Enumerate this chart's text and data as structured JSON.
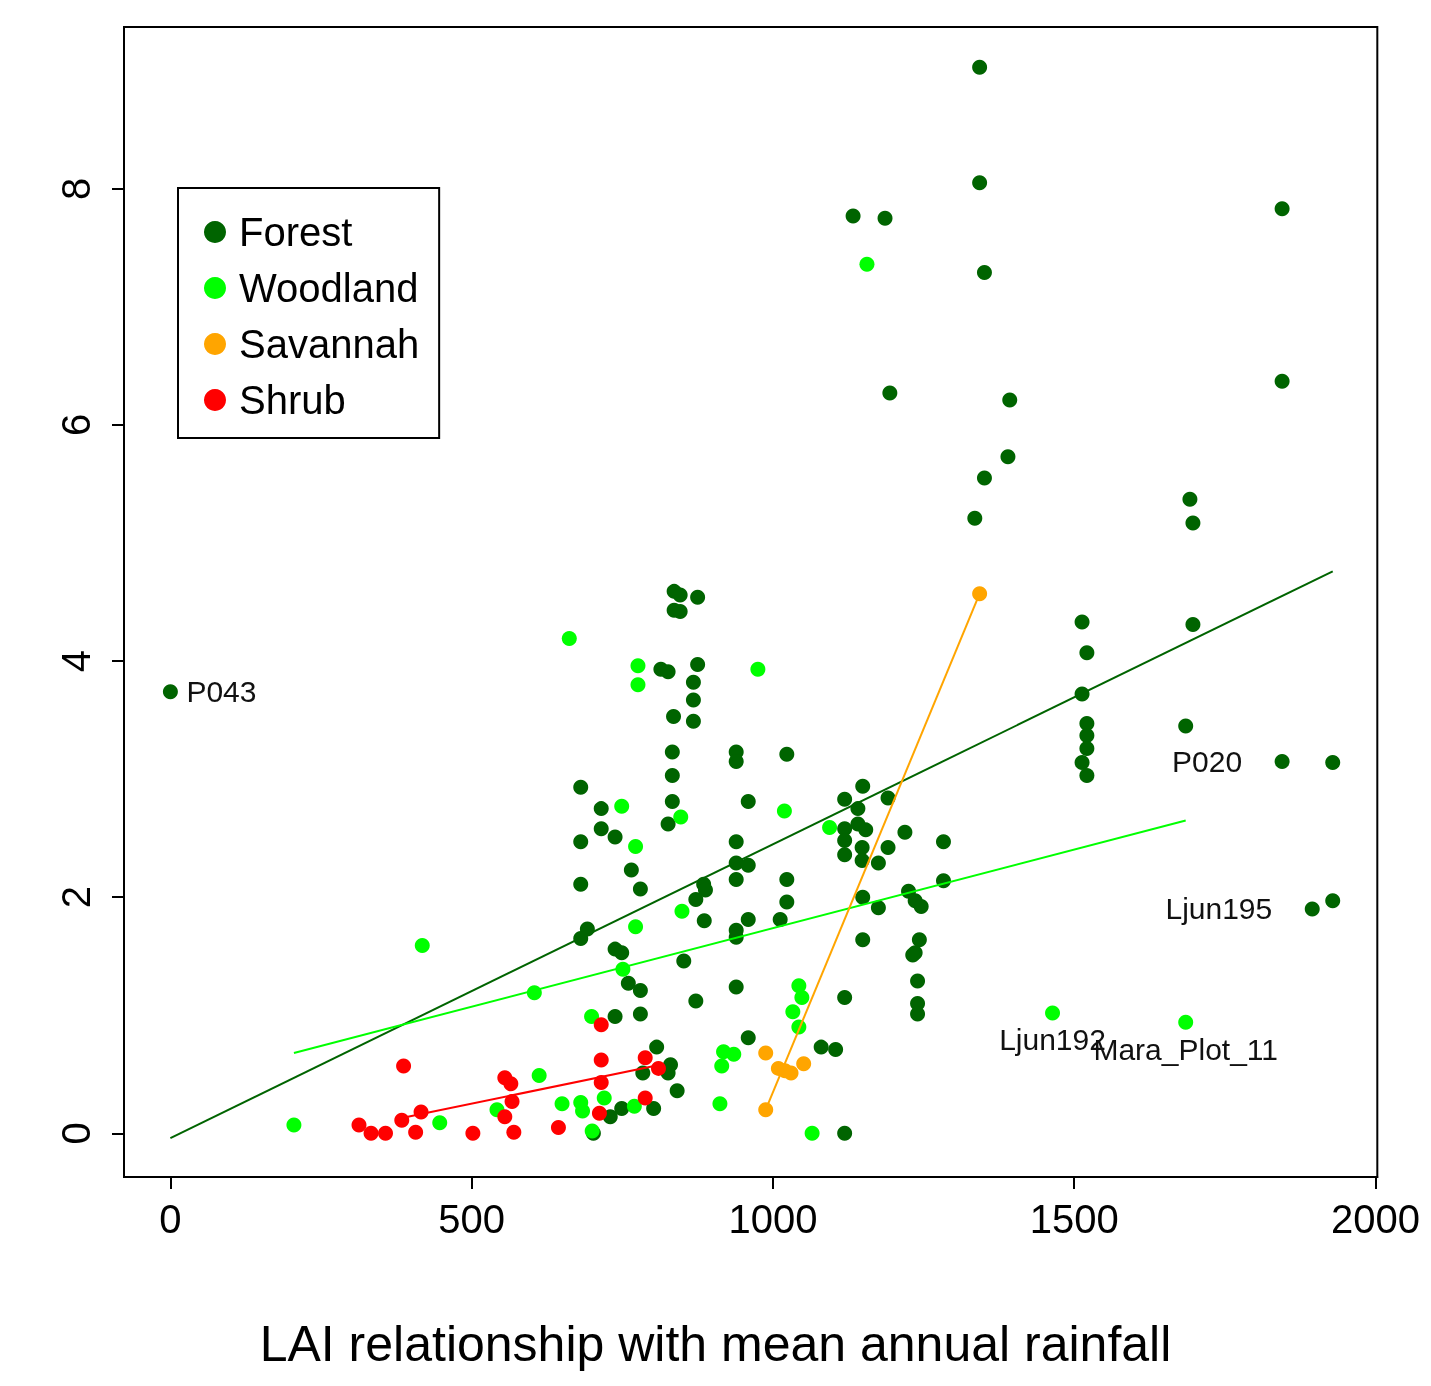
{
  "chart_data": {
    "type": "scatter",
    "title": "LAI relationship with mean annual rainfall",
    "xlim": [
      -77,
      2003
    ],
    "ylim": [
      -0.37,
      9.37
    ],
    "xticks": [
      0,
      500,
      1000,
      1500,
      2000
    ],
    "yticks": [
      0,
      2,
      4,
      6,
      8
    ],
    "grid": false,
    "legend": "top left",
    "marker": "circle",
    "annotations": [
      {
        "text": "P043",
        "x": 0,
        "y": 3.74
      },
      {
        "text": "P020",
        "x": 1845,
        "y": 3.15
      },
      {
        "text": "Ljun195",
        "x": 1895,
        "y": 1.9
      },
      {
        "text": "Ljun192",
        "x": 1464,
        "y": 1.02
      },
      {
        "text": "Mara_Plot_11",
        "x": 1685,
        "y": 0.94
      }
    ],
    "series": [
      {
        "name": "Forest",
        "color": "#006400",
        "x": [
          0,
          1343,
          1343,
          1351,
          1133,
          1186,
          1194,
          1393,
          1390,
          1351,
          1335,
          1845,
          1845,
          1692,
          1697,
          1697,
          1685,
          1845,
          1929,
          1929,
          1895,
          1513,
          1521,
          1513,
          1521,
          1521,
          1521,
          1513,
          1521,
          836,
          846,
          875,
          836,
          846,
          875,
          868,
          868,
          868,
          835,
          814,
          826,
          833,
          833,
          833,
          826,
          681,
          715,
          738,
          715,
          681,
          765,
          780,
          681,
          692,
          681,
          738,
          749,
          760,
          780,
          738,
          780,
          807,
          830,
          826,
          841,
          784,
          802,
          749,
          730,
          702,
          939,
          939,
          1023,
          959,
          939,
          939,
          959,
          939,
          885,
          888,
          872,
          886,
          939,
          939,
          959,
          1012,
          1023,
          1023,
          852,
          939,
          872,
          959,
          1080,
          1104,
          1119,
          1119,
          1119,
          1149,
          1191,
          1141,
          1119,
          1119,
          1119,
          1141,
          1154,
          1148,
          1148,
          1175,
          1191,
          1219,
          1283,
          1283,
          1149,
          1175,
          1225,
          1236,
          1246,
          1149,
          1243,
          1236,
          1232,
          1240,
          1240,
          1240
        ],
        "values": [
          3.74,
          9.03,
          8.05,
          7.29,
          7.77,
          7.75,
          6.27,
          6.21,
          5.73,
          5.55,
          5.21,
          7.83,
          6.37,
          5.37,
          5.17,
          4.31,
          3.45,
          3.15,
          3.14,
          1.97,
          1.9,
          4.33,
          4.07,
          3.72,
          3.47,
          3.37,
          3.26,
          3.14,
          3.03,
          4.59,
          4.56,
          4.54,
          4.43,
          4.42,
          3.97,
          3.82,
          3.67,
          3.49,
          3.53,
          3.93,
          3.91,
          3.23,
          3.03,
          2.81,
          2.62,
          2.93,
          2.75,
          2.51,
          2.58,
          2.47,
          2.23,
          2.07,
          2.11,
          1.73,
          1.65,
          1.56,
          1.53,
          1.27,
          1.21,
          0.99,
          1.01,
          0.73,
          0.58,
          0.51,
          0.36,
          0.51,
          0.21,
          0.21,
          0.14,
          0,
          3.23,
          3.15,
          3.21,
          2.81,
          2.47,
          2.29,
          2.27,
          2.15,
          2.11,
          2.06,
          1.98,
          1.8,
          1.72,
          1.66,
          1.81,
          1.81,
          2.15,
          1.96,
          1.46,
          1.24,
          1.12,
          0.81,
          0.73,
          0.71,
          1.15,
          0,
          2.83,
          2.94,
          2.84,
          2.75,
          2.58,
          2.48,
          2.36,
          2.62,
          2.57,
          2.42,
          2.31,
          2.29,
          2.42,
          2.55,
          2.47,
          2.14,
          2.0,
          1.91,
          2.05,
          1.97,
          1.92,
          1.64,
          1.64,
          1.53,
          1.51,
          1.29,
          1.1,
          1.01
        ]
      },
      {
        "name": "Woodland",
        "color": "#00ff00",
        "x": [
          205,
          418,
          447,
          604,
          662,
          776,
          776,
          975,
          1156,
          749,
          772,
          847,
          849,
          772,
          751,
          699,
          612,
          1019,
          1094,
          1464,
          1685,
          1065,
          700,
          1043,
          1048,
          1033,
          1043,
          918,
          935,
          915,
          912,
          650,
          681,
          684,
          720,
          770,
          542
        ],
        "values": [
          0.07,
          1.59,
          0.09,
          1.19,
          4.19,
          3.96,
          3.8,
          3.93,
          7.36,
          2.77,
          2.43,
          2.68,
          1.88,
          1.75,
          1.39,
          0.99,
          0.49,
          2.73,
          2.59,
          1.02,
          0.94,
          0,
          0.02,
          1.25,
          1.15,
          1.03,
          0.9,
          0.69,
          0.67,
          0.57,
          0.25,
          0.25,
          0.26,
          0.19,
          0.3,
          0.23,
          0.2
        ]
      },
      {
        "name": "Savannah",
        "color": "#ffa500",
        "x": [
          1343,
          988,
          988,
          1009,
          1030,
          1051,
          1020
        ],
        "values": [
          4.57,
          0.2,
          0.68,
          0.55,
          0.51,
          0.59,
          0.53
        ]
      },
      {
        "name": "Shrub",
        "color": "#ff0000",
        "x": [
          387,
          555,
          565,
          567,
          555,
          570,
          313,
          333,
          357,
          384,
          416,
          407,
          502,
          644,
          715,
          715,
          715,
          712,
          788,
          810,
          788
        ],
        "values": [
          0.57,
          0.47,
          0.42,
          0.27,
          0.14,
          0.01,
          0.07,
          0,
          0,
          0.11,
          0.18,
          0.01,
          0,
          0.05,
          0.92,
          0.62,
          0.43,
          0.17,
          0.64,
          0.55,
          0.3
        ]
      },
      {
        "type": "line",
        "marker": "none",
        "color": "#006400",
        "x": [
          0,
          1929
        ],
        "values": [
          -0.04,
          4.76
        ]
      },
      {
        "type": "line",
        "marker": "none",
        "color": "#00ff00",
        "x": [
          205,
          1685
        ],
        "values": [
          0.68,
          2.65
        ]
      },
      {
        "type": "line",
        "marker": "none",
        "color": "#ffa500",
        "x": [
          988,
          1343
        ],
        "values": [
          0.2,
          4.57
        ]
      },
      {
        "type": "line",
        "marker": "none",
        "color": "#ff0000",
        "x": [
          384,
          813
        ],
        "values": [
          0.13,
          0.58
        ]
      }
    ]
  }
}
